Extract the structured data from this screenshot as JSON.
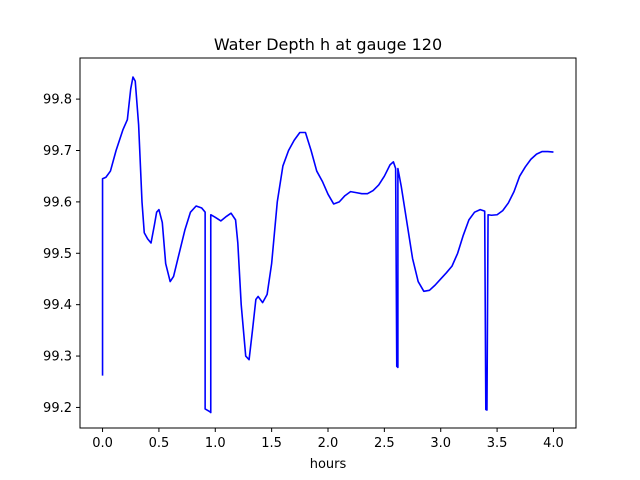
{
  "chart_data": {
    "type": "line",
    "title": "Water Depth h at gauge 120",
    "xlabel": "hours",
    "ylabel": "",
    "xlim": [
      -0.2,
      4.2
    ],
    "ylim": [
      99.16,
      99.88
    ],
    "xticks": [
      0.0,
      0.5,
      1.0,
      1.5,
      2.0,
      2.5,
      3.0,
      3.5,
      4.0
    ],
    "xtick_labels": [
      "0.0",
      "0.5",
      "1.0",
      "1.5",
      "2.0",
      "2.5",
      "3.0",
      "3.5",
      "4.0"
    ],
    "yticks": [
      99.2,
      99.3,
      99.4,
      99.5,
      99.6,
      99.7,
      99.8
    ],
    "ytick_labels": [
      "99.2",
      "99.3",
      "99.4",
      "99.5",
      "99.6",
      "99.7",
      "99.8"
    ],
    "grid": false,
    "series": [
      {
        "color": "#0000ff",
        "points": [
          [
            0.0,
            99.262
          ],
          [
            0.0,
            99.645
          ],
          [
            0.03,
            99.648
          ],
          [
            0.07,
            99.66
          ],
          [
            0.12,
            99.7
          ],
          [
            0.18,
            99.74
          ],
          [
            0.22,
            99.76
          ],
          [
            0.25,
            99.82
          ],
          [
            0.27,
            99.843
          ],
          [
            0.29,
            99.835
          ],
          [
            0.32,
            99.75
          ],
          [
            0.35,
            99.6
          ],
          [
            0.37,
            99.54
          ],
          [
            0.4,
            99.528
          ],
          [
            0.43,
            99.52
          ],
          [
            0.46,
            99.555
          ],
          [
            0.48,
            99.58
          ],
          [
            0.5,
            99.585
          ],
          [
            0.53,
            99.56
          ],
          [
            0.56,
            99.48
          ],
          [
            0.6,
            99.445
          ],
          [
            0.63,
            99.455
          ],
          [
            0.68,
            99.5
          ],
          [
            0.73,
            99.545
          ],
          [
            0.78,
            99.58
          ],
          [
            0.83,
            99.592
          ],
          [
            0.88,
            99.588
          ],
          [
            0.91,
            99.58
          ],
          [
            0.91,
            99.197
          ],
          [
            0.95,
            99.192
          ],
          [
            0.96,
            99.19
          ],
          [
            0.96,
            99.575
          ],
          [
            1.0,
            99.57
          ],
          [
            1.05,
            99.563
          ],
          [
            1.1,
            99.572
          ],
          [
            1.14,
            99.578
          ],
          [
            1.18,
            99.565
          ],
          [
            1.2,
            99.52
          ],
          [
            1.23,
            99.4
          ],
          [
            1.27,
            99.3
          ],
          [
            1.3,
            99.293
          ],
          [
            1.33,
            99.35
          ],
          [
            1.36,
            99.41
          ],
          [
            1.38,
            99.416
          ],
          [
            1.42,
            99.404
          ],
          [
            1.46,
            99.42
          ],
          [
            1.5,
            99.48
          ],
          [
            1.55,
            99.6
          ],
          [
            1.6,
            99.67
          ],
          [
            1.65,
            99.7
          ],
          [
            1.7,
            99.72
          ],
          [
            1.75,
            99.735
          ],
          [
            1.8,
            99.735
          ],
          [
            1.85,
            99.7
          ],
          [
            1.9,
            99.66
          ],
          [
            1.95,
            99.64
          ],
          [
            2.0,
            99.615
          ],
          [
            2.05,
            99.596
          ],
          [
            2.1,
            99.6
          ],
          [
            2.15,
            99.612
          ],
          [
            2.2,
            99.62
          ],
          [
            2.25,
            99.618
          ],
          [
            2.3,
            99.616
          ],
          [
            2.35,
            99.616
          ],
          [
            2.4,
            99.622
          ],
          [
            2.45,
            99.633
          ],
          [
            2.5,
            99.65
          ],
          [
            2.55,
            99.672
          ],
          [
            2.58,
            99.678
          ],
          [
            2.6,
            99.665
          ],
          [
            2.61,
            99.28
          ],
          [
            2.62,
            99.278
          ],
          [
            2.62,
            99.665
          ],
          [
            2.65,
            99.63
          ],
          [
            2.7,
            99.56
          ],
          [
            2.75,
            99.49
          ],
          [
            2.8,
            99.445
          ],
          [
            2.85,
            99.426
          ],
          [
            2.9,
            99.428
          ],
          [
            2.95,
            99.438
          ],
          [
            3.0,
            99.45
          ],
          [
            3.05,
            99.462
          ],
          [
            3.1,
            99.475
          ],
          [
            3.15,
            99.5
          ],
          [
            3.2,
            99.535
          ],
          [
            3.25,
            99.565
          ],
          [
            3.3,
            99.58
          ],
          [
            3.35,
            99.585
          ],
          [
            3.39,
            99.582
          ],
          [
            3.4,
            99.196
          ],
          [
            3.41,
            99.195
          ],
          [
            3.42,
            99.575
          ],
          [
            3.45,
            99.574
          ],
          [
            3.5,
            99.575
          ],
          [
            3.55,
            99.583
          ],
          [
            3.6,
            99.598
          ],
          [
            3.65,
            99.62
          ],
          [
            3.7,
            99.65
          ],
          [
            3.75,
            99.668
          ],
          [
            3.8,
            99.683
          ],
          [
            3.85,
            99.693
          ],
          [
            3.9,
            99.698
          ],
          [
            3.95,
            99.698
          ],
          [
            4.0,
            99.697
          ]
        ]
      }
    ]
  }
}
